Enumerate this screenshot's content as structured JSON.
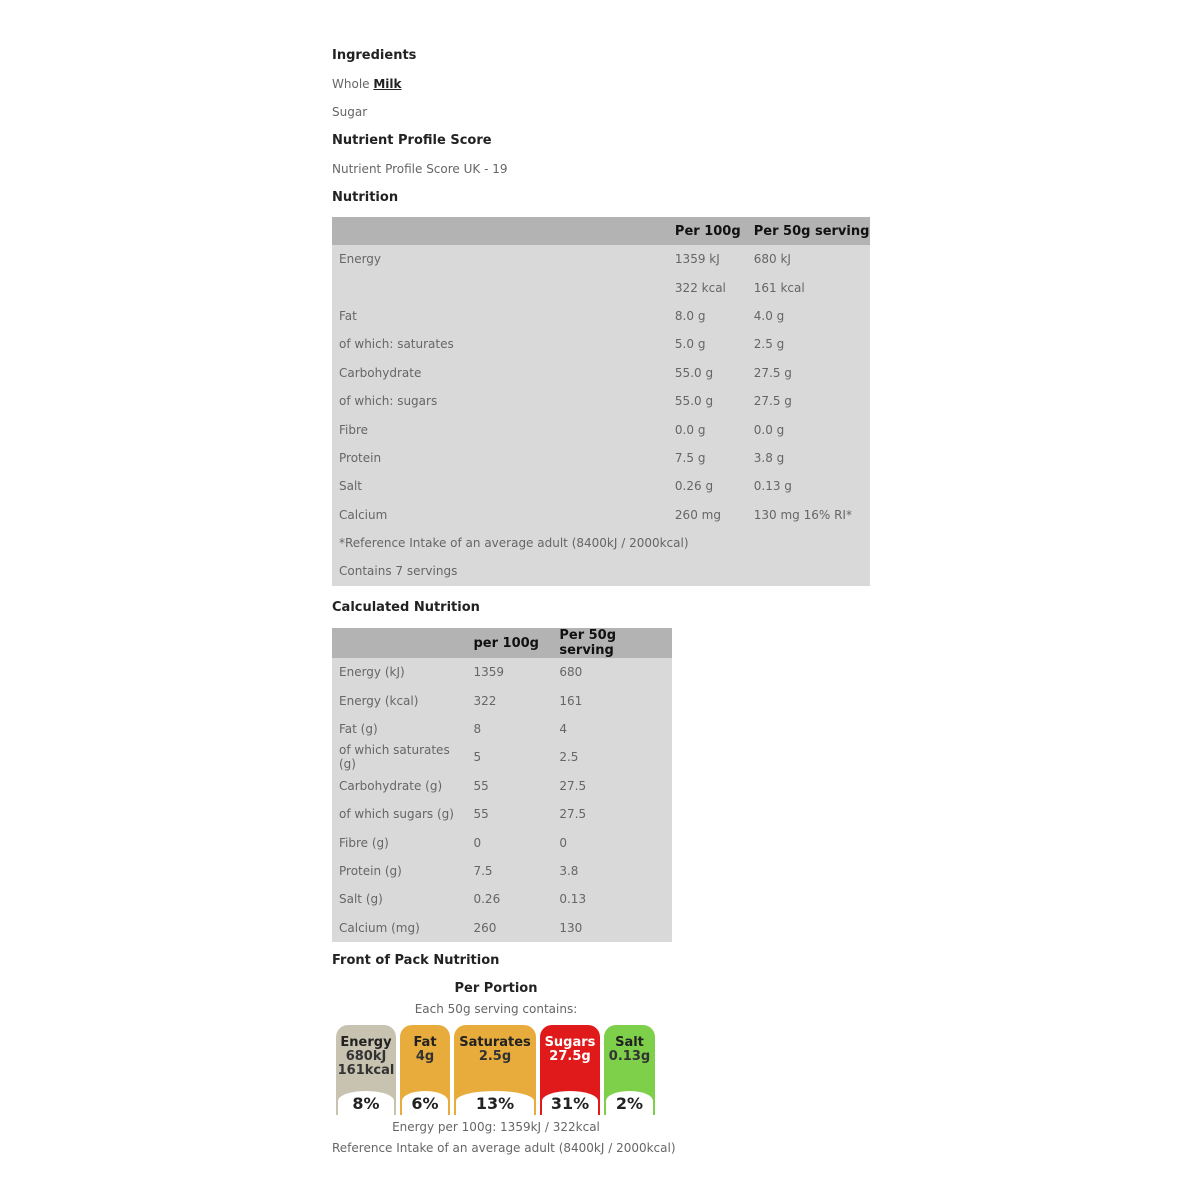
{
  "ingredients": {
    "title": "Ingredients",
    "items": [
      {
        "prefix": "Whole ",
        "allergen": "Milk"
      },
      {
        "prefix": "Sugar",
        "allergen": ""
      }
    ]
  },
  "nps": {
    "title": "Nutrient Profile Score",
    "text": "Nutrient Profile Score UK - 19"
  },
  "nutrition": {
    "title": "Nutrition",
    "headers": [
      "",
      "Per 100g",
      "Per 50g serving"
    ],
    "rows": [
      [
        "Energy",
        "1359 kJ",
        "680 kJ"
      ],
      [
        "",
        "322 kcal",
        "161 kcal"
      ],
      [
        "Fat",
        "8.0 g",
        "4.0 g"
      ],
      [
        "of which: saturates",
        "5.0 g",
        "2.5 g"
      ],
      [
        "Carbohydrate",
        "55.0 g",
        "27.5 g"
      ],
      [
        "of which: sugars",
        "55.0 g",
        "27.5 g"
      ],
      [
        "Fibre",
        "0.0 g",
        "0.0 g"
      ],
      [
        "Protein",
        "7.5 g",
        "3.8 g"
      ],
      [
        "Salt",
        "0.26 g",
        "0.13 g"
      ],
      [
        "Calcium",
        "260 mg",
        "130 mg 16% RI*"
      ]
    ],
    "footnote": "*Reference Intake of an average adult (8400kJ / 2000kcal)",
    "servings": "Contains 7 servings"
  },
  "calculated": {
    "title": "Calculated Nutrition",
    "headers": [
      "",
      "per 100g",
      "Per 50g serving"
    ],
    "rows": [
      [
        "Energy (kJ)",
        "1359",
        "680"
      ],
      [
        "Energy (kcal)",
        "322",
        "161"
      ],
      [
        "Fat (g)",
        "8",
        "4"
      ],
      [
        "of which saturates (g)",
        "5",
        "2.5"
      ],
      [
        "Carbohydrate (g)",
        "55",
        "27.5"
      ],
      [
        "of which sugars (g)",
        "55",
        "27.5"
      ],
      [
        "Fibre (g)",
        "0",
        "0"
      ],
      [
        "Protein (g)",
        "7.5",
        "3.8"
      ],
      [
        "Salt (g)",
        "0.26",
        "0.13"
      ],
      [
        "Calcium (mg)",
        "260",
        "130"
      ]
    ]
  },
  "front_of_pack": {
    "title": "Front of Pack Nutrition",
    "per_portion": "Per Portion",
    "each": "Each 50g serving contains:",
    "items": [
      {
        "label": "Energy",
        "value": "680kJ",
        "value2": "161kcal",
        "pct": "8%",
        "color": "#c8c3b0"
      },
      {
        "label": "Fat",
        "value": "4g",
        "value2": "",
        "pct": "6%",
        "color": "#e8ac3c"
      },
      {
        "label": "Saturates",
        "value": "2.5g",
        "value2": "",
        "pct": "13%",
        "color": "#e8ac3c"
      },
      {
        "label": "Sugars",
        "value": "27.5g",
        "value2": "",
        "pct": "31%",
        "color": "#e01a1a"
      },
      {
        "label": "Salt",
        "value": "0.13g",
        "value2": "",
        "pct": "2%",
        "color": "#7ed04b"
      }
    ],
    "energy100": "Energy per 100g: 1359kJ / 322kcal",
    "ri": "Reference Intake of an average adult (8400kJ / 2000kcal)"
  }
}
